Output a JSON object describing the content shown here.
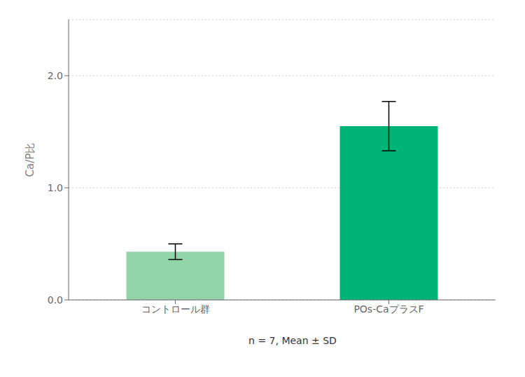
{
  "chart_data": {
    "type": "bar",
    "categories": [
      "コントロール群",
      "POs-CaプラスF"
    ],
    "values": [
      0.43,
      1.55
    ],
    "errors": [
      0.07,
      0.22
    ],
    "colors": [
      "#90d4a8",
      "#00b377"
    ],
    "ylabel": "Ca/P比",
    "subtitle": "n = 7,  Mean ± SD",
    "ylim": [
      0,
      2.5
    ],
    "yticks": [
      {
        "value": 0,
        "label": "0.0"
      },
      {
        "value": 1,
        "label": "1.0"
      },
      {
        "value": 2,
        "label": "2.0"
      }
    ],
    "grid": true
  }
}
